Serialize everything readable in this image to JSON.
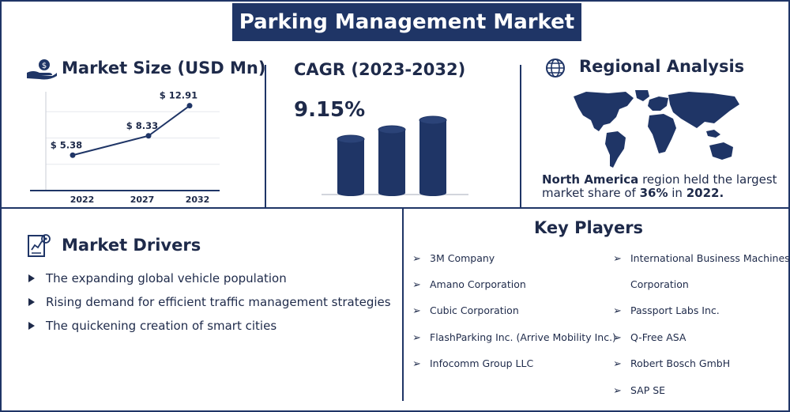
{
  "title": "Parking Management Market",
  "market_size": {
    "heading": "Market Size (USD Mn)"
  },
  "cagr": {
    "heading": "CAGR (2023-2032)",
    "value": "9.15%"
  },
  "regional": {
    "heading": "Regional Analysis",
    "text_bold_1": "North America",
    "text_1": " region held the largest",
    "text_2": "market share of ",
    "text_bold_2": "36%",
    "text_3": " in ",
    "text_bold_3": "2022."
  },
  "drivers": {
    "heading": "Market Drivers",
    "items": [
      "The expanding global vehicle population",
      "Rising demand for efficient traffic management strategies",
      "The quickening creation of smart cities"
    ]
  },
  "key_players": {
    "heading": "Key Players",
    "left": [
      "3M Company",
      "Amano Corporation",
      "Cubic Corporation",
      "FlashParking Inc. (Arrive Mobility Inc.)",
      "Infocomm Group LLC"
    ],
    "right_first_line": "International Business Machines",
    "right_first_cont": "Corporation",
    "right": [
      "Passport Labs Inc.",
      "Q-Free ASA",
      "Robert Bosch GmbH",
      "SAP SE"
    ]
  },
  "colors": {
    "primary": "#1f3566",
    "text": "#1e2a4a"
  },
  "chart_data": [
    {
      "type": "line",
      "x": [
        "2022",
        "2027",
        "2032"
      ],
      "values": [
        5.38,
        8.33,
        12.91
      ],
      "labels": [
        "$ 5.38",
        "$ 8.33",
        "$ 12.91"
      ],
      "ylim": [
        0,
        16
      ],
      "grid": true
    },
    {
      "type": "bar",
      "categories": [
        "",
        "",
        ""
      ],
      "values": [
        1,
        2,
        3
      ]
    }
  ]
}
